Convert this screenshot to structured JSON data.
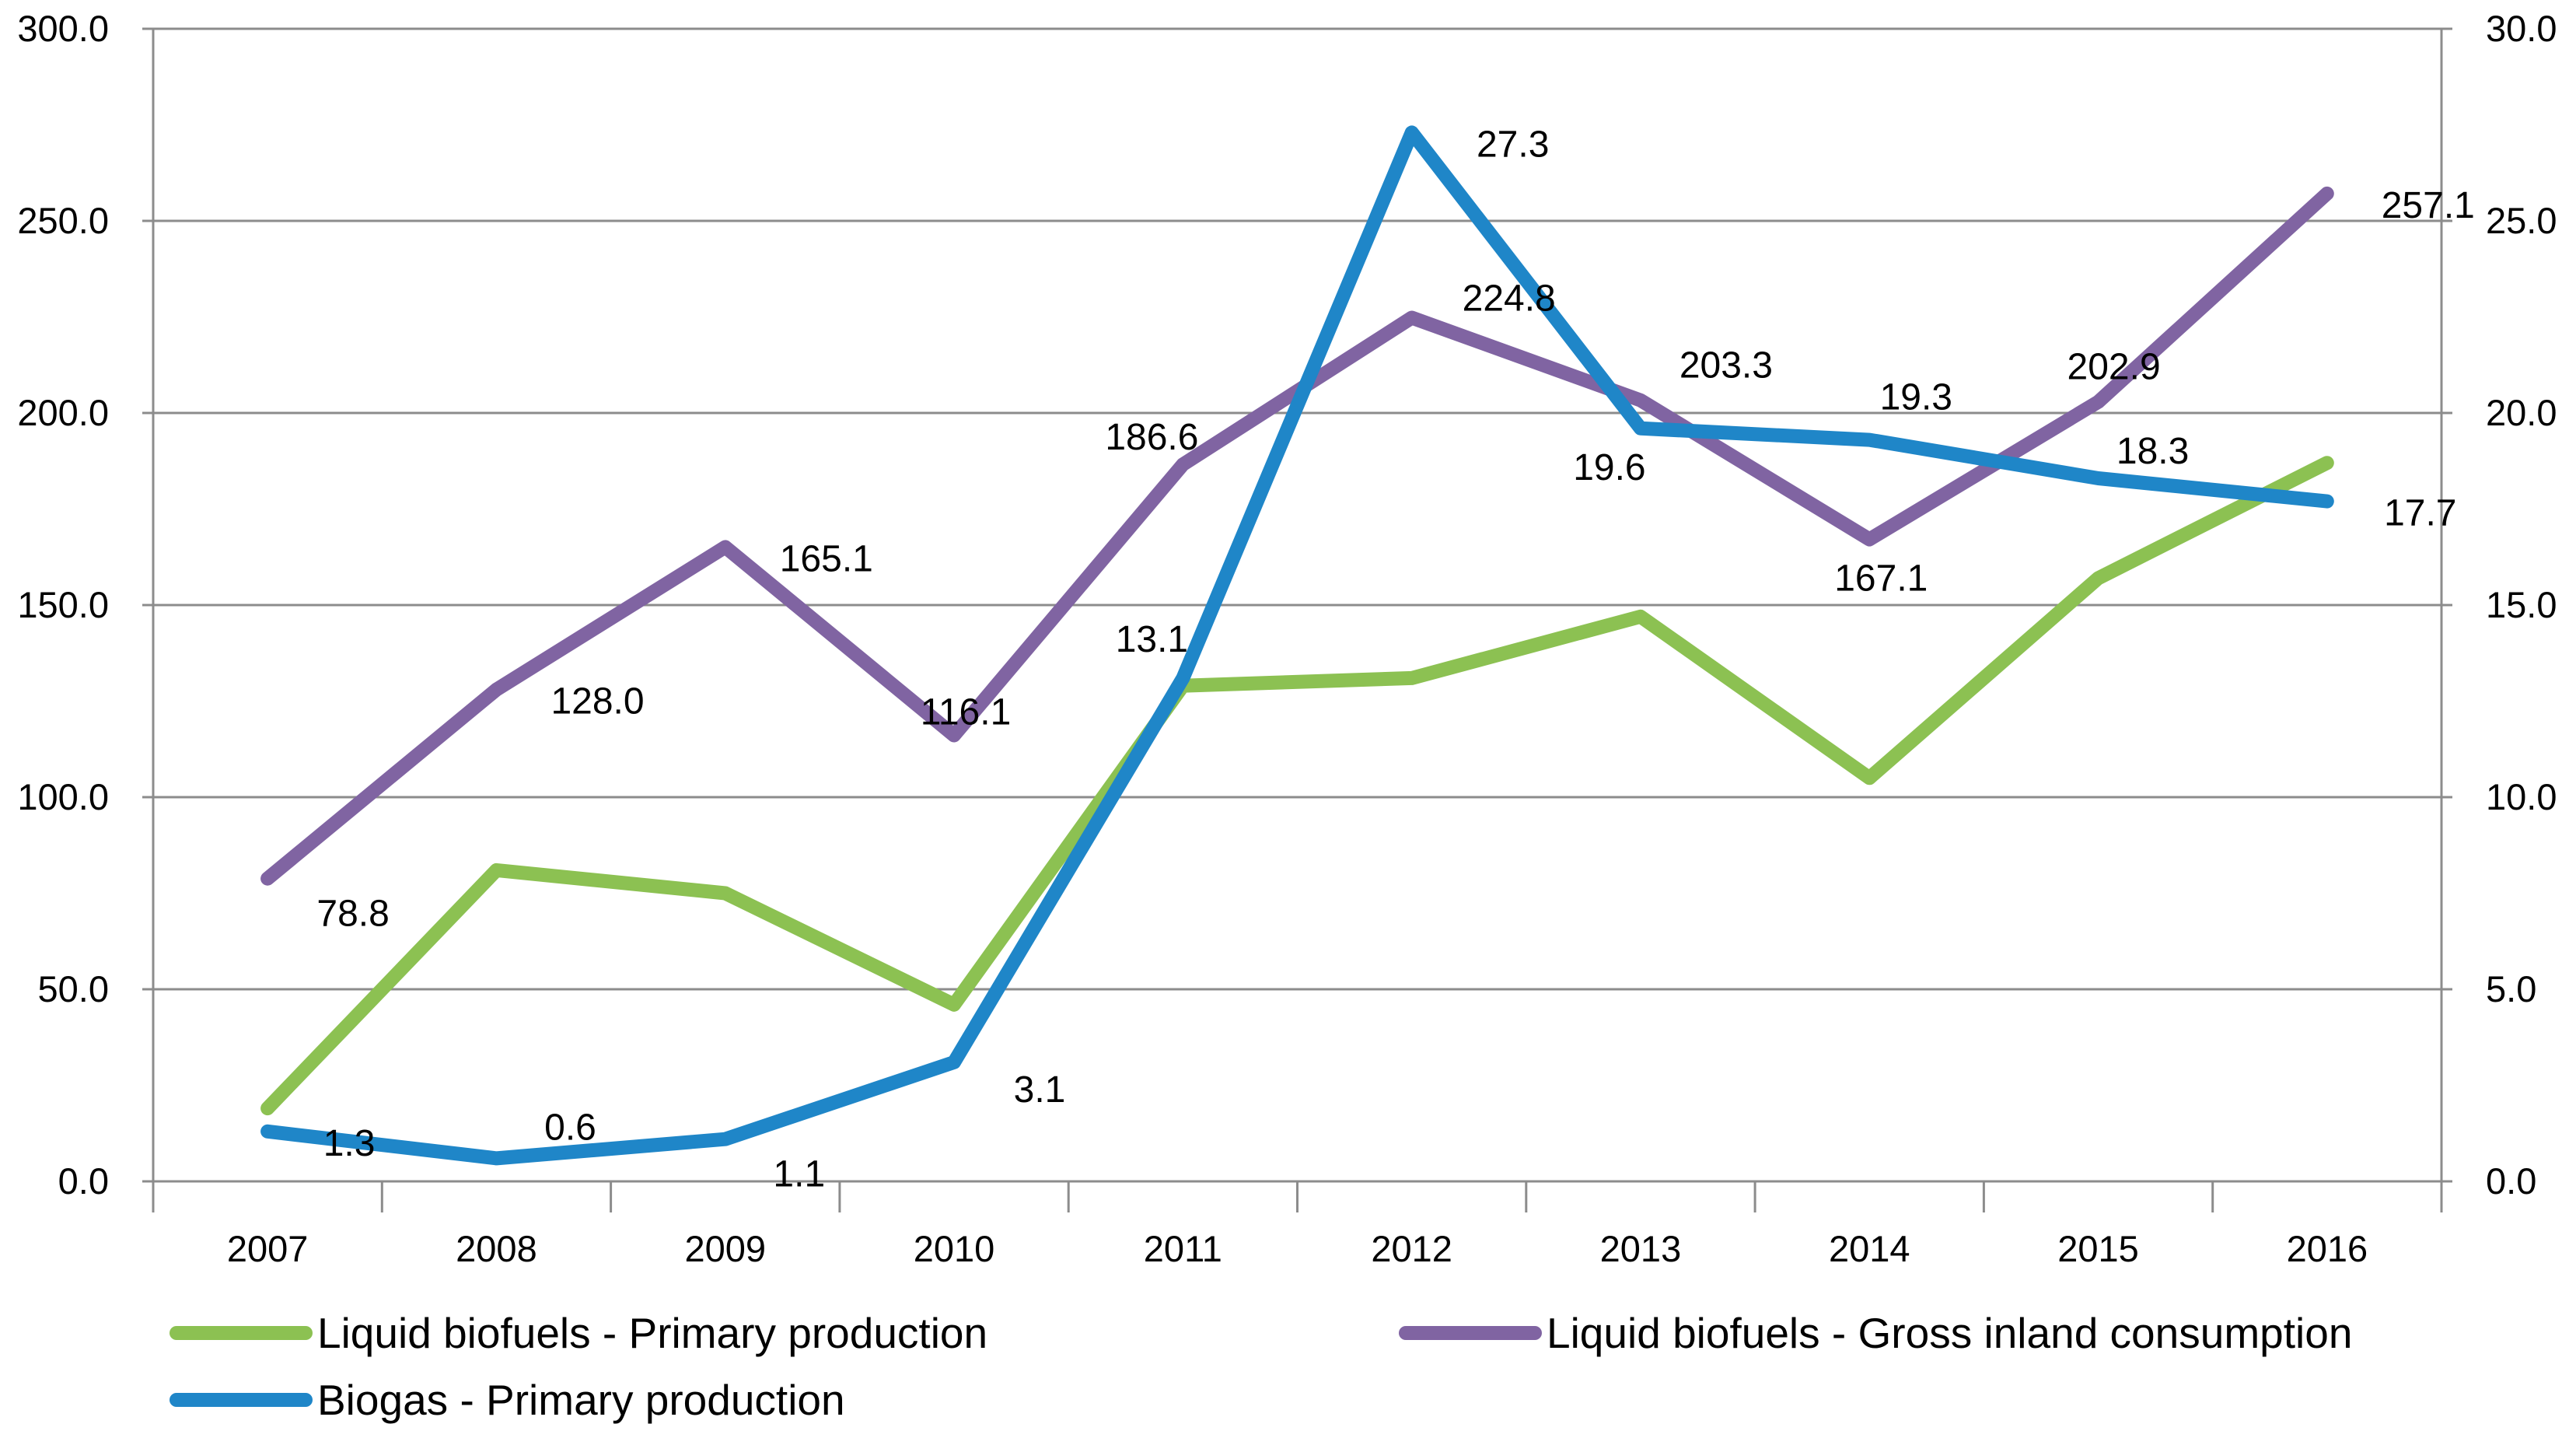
{
  "chart_data": {
    "type": "line",
    "title": "",
    "xlabel": "",
    "ylabel": "",
    "categories": [
      "2007",
      "2008",
      "2009",
      "2010",
      "2011",
      "2012",
      "2013",
      "2014",
      "2015",
      "2016"
    ],
    "y_left": {
      "min": 0,
      "max": 300,
      "step": 50,
      "ticks": [
        "0.0",
        "50.0",
        "100.0",
        "150.0",
        "200.0",
        "250.0",
        "300.0"
      ]
    },
    "y_right": {
      "min": 0,
      "max": 30,
      "step": 5,
      "ticks": [
        "0.0",
        "5.0",
        "10.0",
        "15.0",
        "20.0",
        "25.0",
        "30.0"
      ]
    },
    "grid": true,
    "legend_position": "bottom",
    "series": [
      {
        "name": "Liquid biofuels - Primary production",
        "axis": "left",
        "color": "#8CC152",
        "values": [
          19,
          81,
          75,
          46,
          129,
          131,
          147,
          105,
          157,
          187
        ],
        "labels": null
      },
      {
        "name": "Liquid biofuels - Gross inland consumption",
        "axis": "left",
        "color": "#8064A2",
        "values": [
          78.8,
          128.0,
          165.1,
          116.1,
          186.6,
          224.8,
          203.3,
          167.1,
          202.9,
          257.1
        ],
        "labels": [
          "78.8",
          "128.0",
          "165.1",
          "116.1",
          "186.6",
          "224.8",
          "203.3",
          "167.1",
          "202.9",
          "257.1"
        ]
      },
      {
        "name": "Biogas - Primary production",
        "axis": "right",
        "color": "#1F86C8",
        "values": [
          1.3,
          0.6,
          1.1,
          3.1,
          13.1,
          27.3,
          19.6,
          19.3,
          18.3,
          17.7
        ],
        "labels": [
          "1.3",
          "0.6",
          "1.1",
          "3.1",
          "13.1",
          "27.3",
          "19.6",
          "19.3",
          "18.3",
          "17.7"
        ]
      }
    ]
  }
}
